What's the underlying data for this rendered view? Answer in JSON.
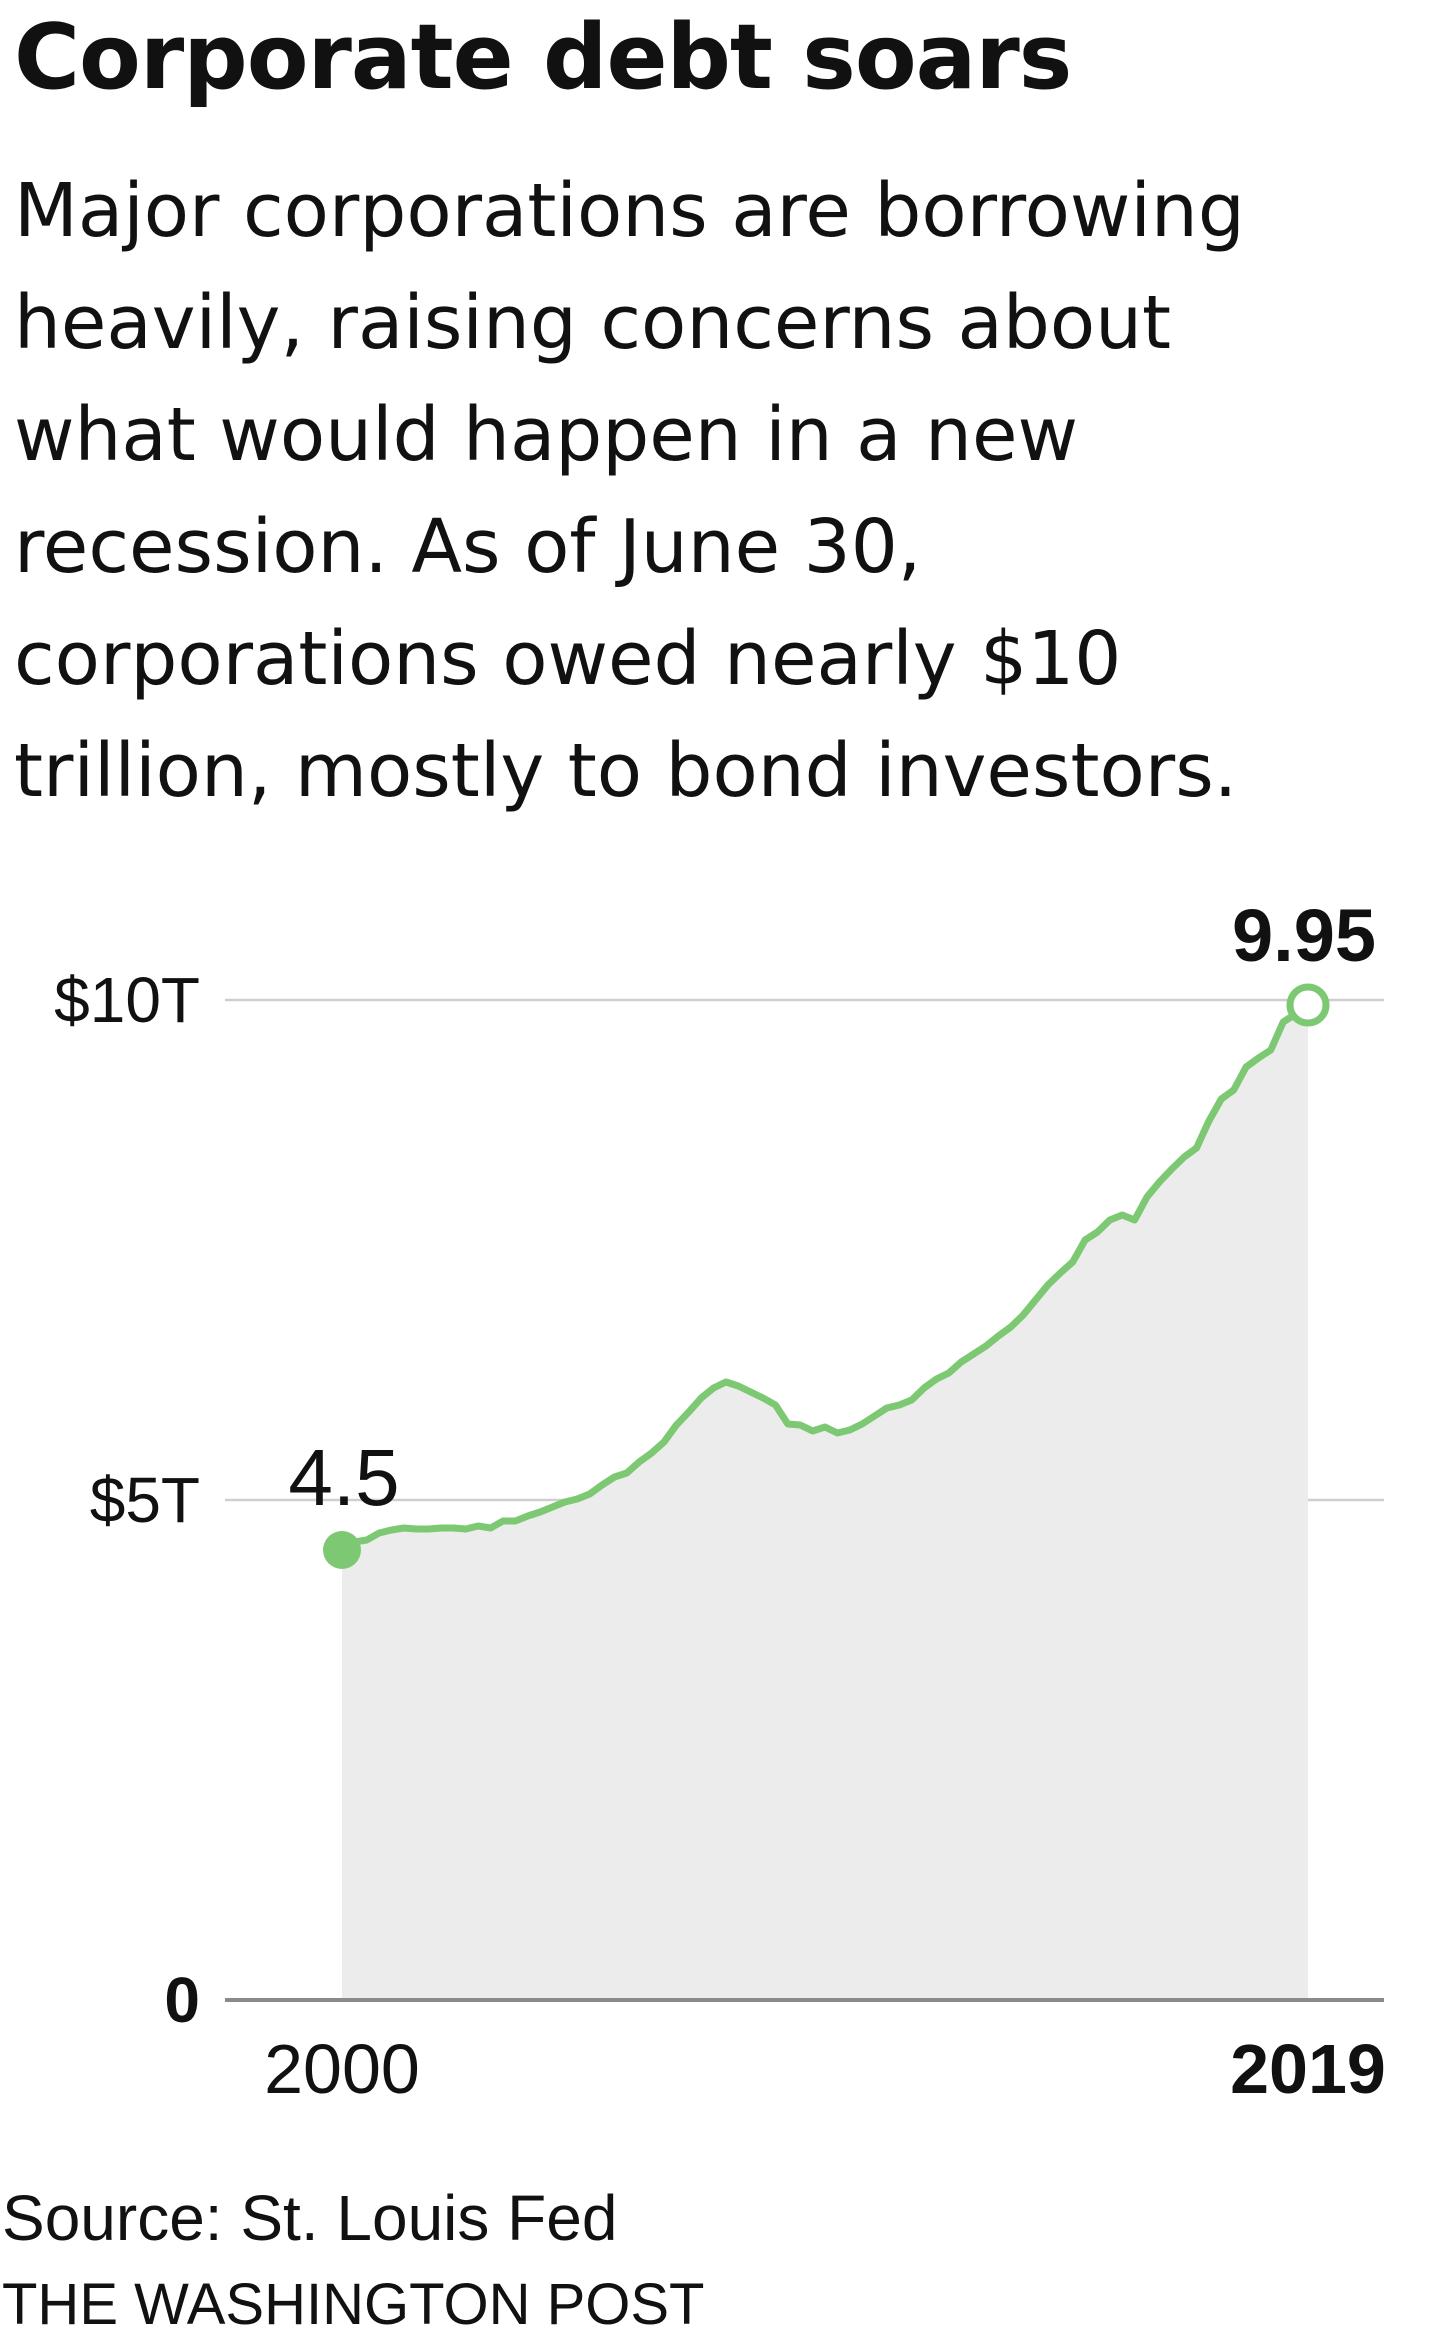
{
  "header": {
    "title": "Corporate debt soars",
    "subtitle_lines": [
      "Major corporations are borrowing",
      "heavily, raising concerns about",
      "what would happen in a new",
      "recession. As of June 30,",
      "corporations owed nearly $10",
      "trillion, mostly to bond investors."
    ]
  },
  "footer": {
    "source": "Source: St. Louis Fed",
    "credit": "THE WASHINGTON POST"
  },
  "colors": {
    "line": "#7dc873",
    "area": "#ececec",
    "grid": "#cfcfcf",
    "baseline": "#8a8a8a",
    "text": "#111111"
  },
  "chart_data": {
    "type": "area",
    "title": "",
    "xlabel": "",
    "ylabel": "",
    "ylim": [
      0,
      10
    ],
    "xlim": [
      2000,
      2019.5
    ],
    "grid": true,
    "y_ticks": [
      {
        "value": 0,
        "label": "0",
        "bold": true
      },
      {
        "value": 5,
        "label": "$5T",
        "bold": false
      },
      {
        "value": 10,
        "label": "$10T",
        "bold": false
      }
    ],
    "x_ticks": [
      {
        "value": 2000,
        "label": "2000",
        "bold": false
      },
      {
        "value": 2019.5,
        "label": "2019",
        "bold": true
      }
    ],
    "annotations": [
      {
        "x": 2000,
        "y": 4.5,
        "label": "4.5",
        "bold": false,
        "marker": "filled"
      },
      {
        "x": 2019.5,
        "y": 9.95,
        "label": "9.95",
        "bold": true,
        "marker": "open"
      }
    ],
    "series": [
      {
        "x": [
          2000,
          2000.25,
          2000.5,
          2000.75,
          2001,
          2001.25,
          2001.5,
          2001.75,
          2002,
          2002.25,
          2002.5,
          2002.75,
          2003,
          2003.25,
          2003.5,
          2003.75,
          2004,
          2004.25,
          2004.5,
          2004.75,
          2005,
          2005.25,
          2005.5,
          2005.75,
          2006,
          2006.25,
          2006.5,
          2006.75,
          2007,
          2007.25,
          2007.5,
          2007.75,
          2008,
          2008.25,
          2008.5,
          2008.75,
          2009,
          2009.25,
          2009.5,
          2009.75,
          2010,
          2010.25,
          2010.5,
          2010.75,
          2011,
          2011.25,
          2011.5,
          2011.75,
          2012,
          2012.25,
          2012.5,
          2012.75,
          2013,
          2013.25,
          2013.5,
          2013.75,
          2014,
          2014.25,
          2014.5,
          2014.75,
          2015,
          2015.25,
          2015.5,
          2015.75,
          2016,
          2016.25,
          2016.5,
          2016.75,
          2017,
          2017.25,
          2017.5,
          2017.75,
          2018,
          2018.25,
          2018.5,
          2018.75,
          2019,
          2019.25,
          2019.5
        ],
        "values": [
          4.5,
          4.58,
          4.6,
          4.67,
          4.7,
          4.72,
          4.71,
          4.71,
          4.72,
          4.72,
          4.71,
          4.74,
          4.72,
          4.79,
          4.79,
          4.84,
          4.88,
          4.93,
          4.98,
          5.01,
          5.06,
          5.15,
          5.23,
          5.27,
          5.38,
          5.47,
          5.58,
          5.75,
          5.88,
          6.02,
          6.12,
          6.18,
          6.14,
          6.08,
          6.02,
          5.95,
          5.76,
          5.75,
          5.69,
          5.73,
          5.67,
          5.7,
          5.76,
          5.84,
          5.92,
          5.95,
          6.0,
          6.12,
          6.21,
          6.27,
          6.38,
          6.46,
          6.54,
          6.64,
          6.73,
          6.85,
          7.0,
          7.15,
          7.27,
          7.38,
          7.6,
          7.68,
          7.8,
          7.85,
          7.8,
          8.03,
          8.18,
          8.31,
          8.43,
          8.52,
          8.79,
          9.01,
          9.1,
          9.33,
          9.42,
          9.5,
          9.78,
          9.86,
          9.95
        ]
      }
    ]
  }
}
